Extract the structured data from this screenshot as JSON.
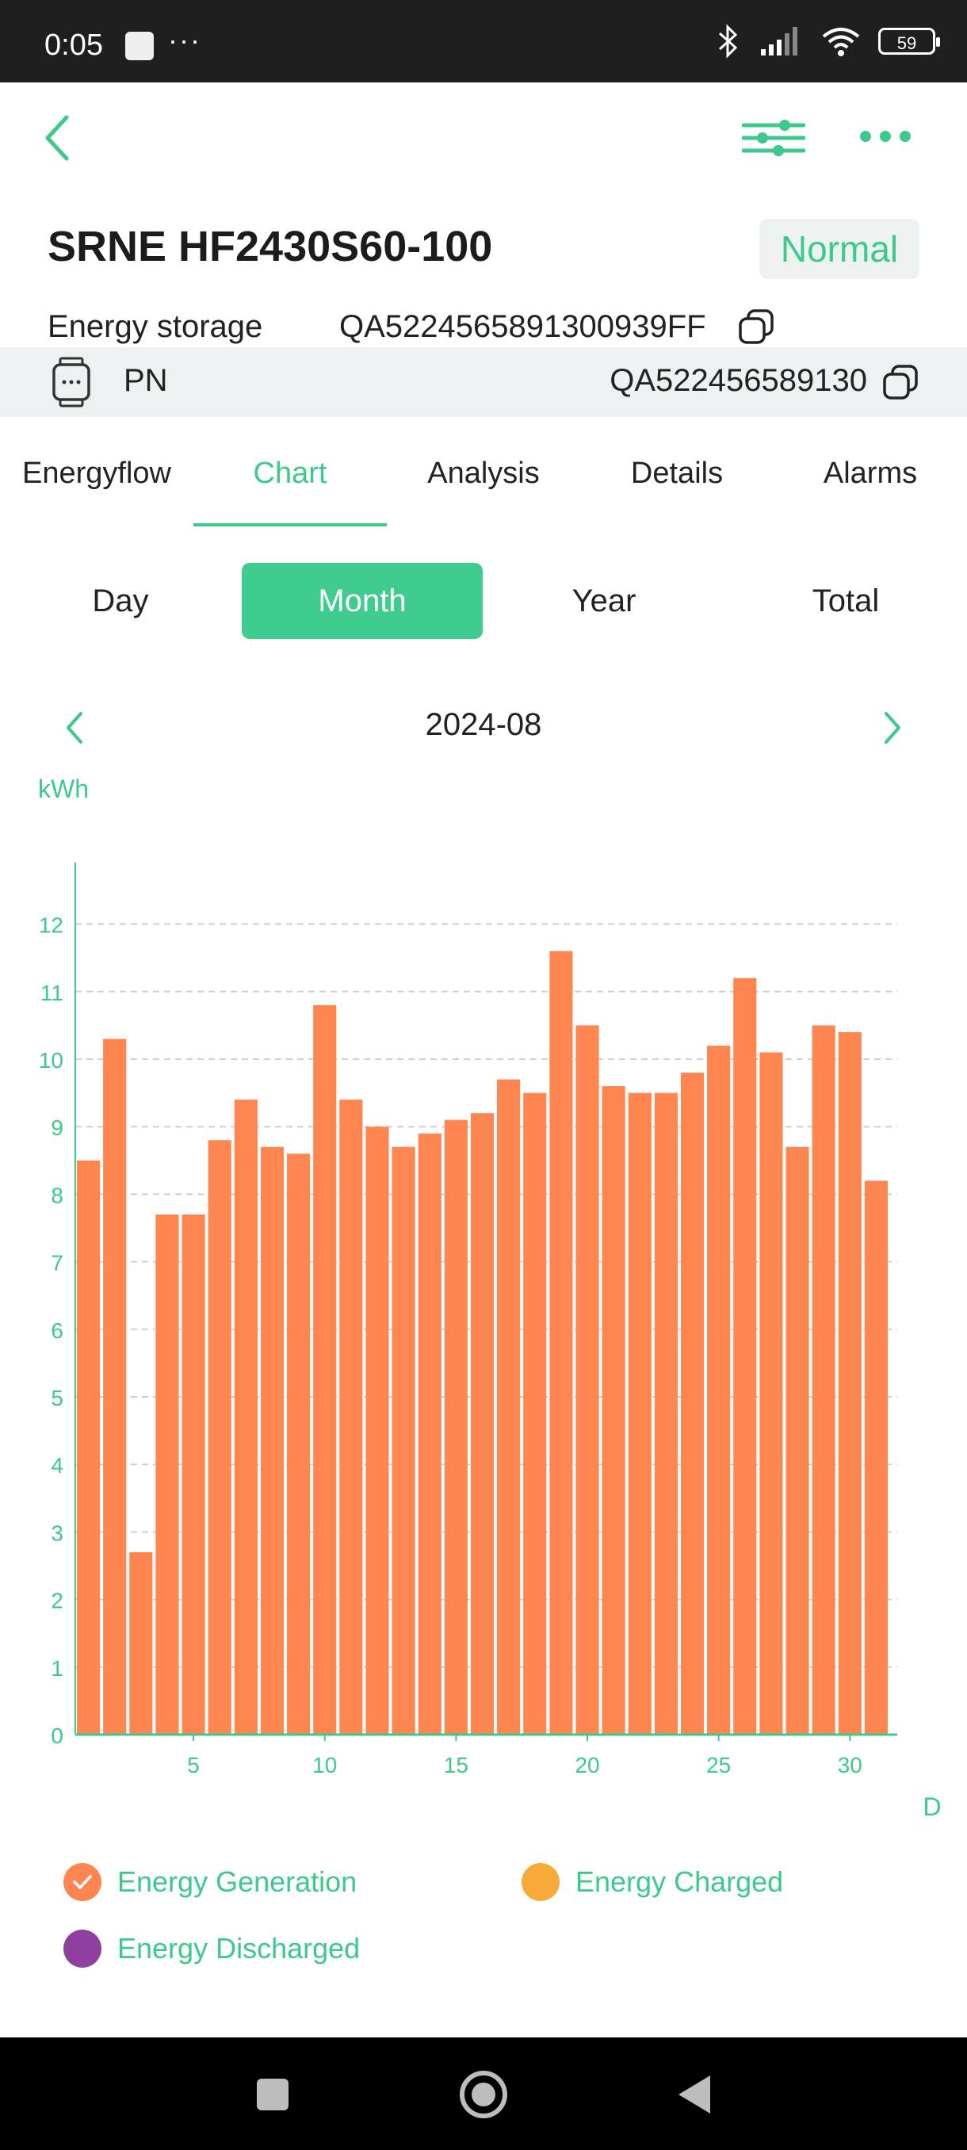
{
  "status_bar": {
    "time": "0:05",
    "dots": "···",
    "battery": "59"
  },
  "device": {
    "name": "SRNE HF2430S60-100",
    "status": "Normal",
    "storage_label": "Energy storage",
    "storage_id": "QA5224565891300939FF",
    "pn_label": "PN",
    "pn_value": "QA522456589130"
  },
  "tabs": [
    "Energyflow",
    "Chart",
    "Analysis",
    "Details",
    "Alarms"
  ],
  "active_tab": "Chart",
  "periods": [
    "Day",
    "Month",
    "Year",
    "Total"
  ],
  "active_period": "Month",
  "date": "2024-08",
  "colors": {
    "accent": "#3dc98b",
    "bar": "#ff8551",
    "charged": "#f7ab3a",
    "discharged": "#8e3fa0"
  },
  "chart_data": {
    "type": "bar",
    "ylabel": "kWh",
    "xlabel": "D",
    "ylim": [
      0,
      13
    ],
    "yticks": [
      0,
      1,
      2,
      3,
      4,
      5,
      6,
      7,
      8,
      9,
      10,
      11,
      12
    ],
    "xticks": [
      5,
      10,
      15,
      20,
      25,
      30
    ],
    "grid": "dashed horizontal",
    "categories": [
      1,
      2,
      3,
      4,
      5,
      6,
      7,
      8,
      9,
      10,
      11,
      12,
      13,
      14,
      15,
      16,
      17,
      18,
      19,
      20,
      21,
      22,
      23,
      24,
      25,
      26,
      27,
      28,
      29,
      30,
      31
    ],
    "series": [
      {
        "name": "Energy Generation",
        "values": [
          8.5,
          10.3,
          2.7,
          7.7,
          7.7,
          8.8,
          9.4,
          8.7,
          8.6,
          10.8,
          9.4,
          9.0,
          8.7,
          8.9,
          9.1,
          9.2,
          9.7,
          9.5,
          11.6,
          10.5,
          9.6,
          9.5,
          9.5,
          9.8,
          10.2,
          11.2,
          10.1,
          8.7,
          10.5,
          10.4,
          8.2
        ]
      }
    ],
    "legend": [
      "Energy Generation",
      "Energy Charged",
      "Energy Discharged"
    ],
    "legend_position": "bottom"
  }
}
